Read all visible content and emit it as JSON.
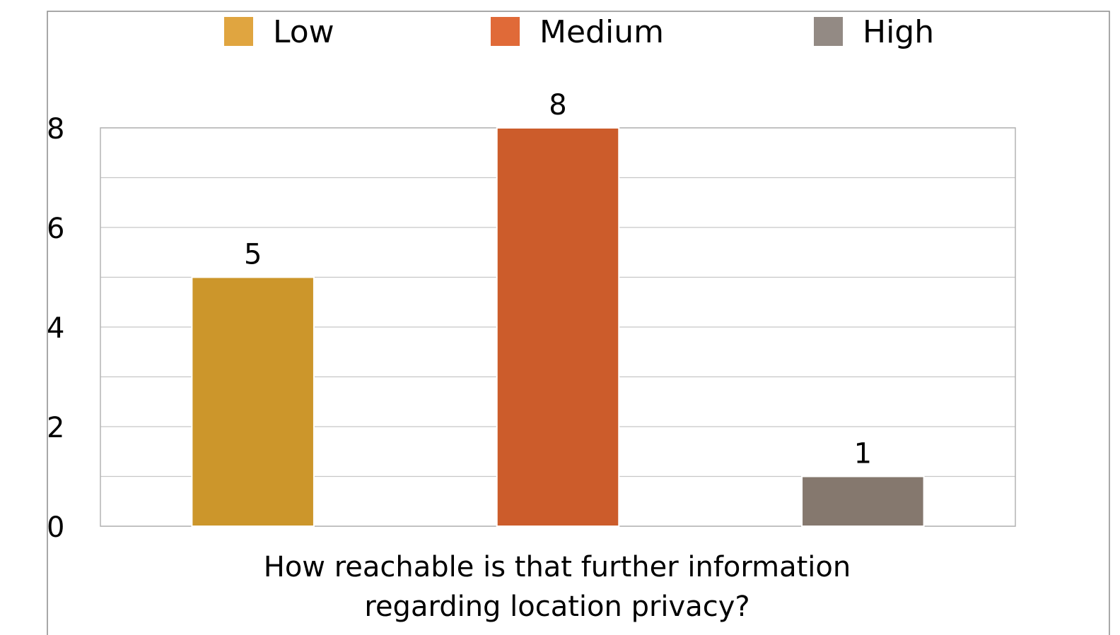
{
  "chart_data": {
    "type": "bar",
    "categories": [
      "Low",
      "Medium",
      "High"
    ],
    "values": [
      5,
      8,
      1
    ],
    "data_labels": [
      "5",
      "8",
      "1"
    ],
    "colors": [
      "#cc962b",
      "#cc5c2b",
      "#85786e"
    ],
    "legend": {
      "position": "top",
      "entries": [
        {
          "label": "Low",
          "color": "#e0a540"
        },
        {
          "label": "Medium",
          "color": "#e06a38"
        },
        {
          "label": "High",
          "color": "#938a84"
        }
      ]
    },
    "ylim": [
      0,
      8
    ],
    "y_ticks": [
      0,
      2,
      4,
      6,
      8
    ],
    "y_tick_labels": [
      "0",
      "2",
      "4",
      "6",
      "8"
    ],
    "minor_gridlines": [
      1,
      3,
      5,
      7
    ],
    "grid": true,
    "xlabel_lines": [
      "How reachable is that further information",
      "regarding location privacy?"
    ],
    "ylabel": "",
    "title": ""
  }
}
